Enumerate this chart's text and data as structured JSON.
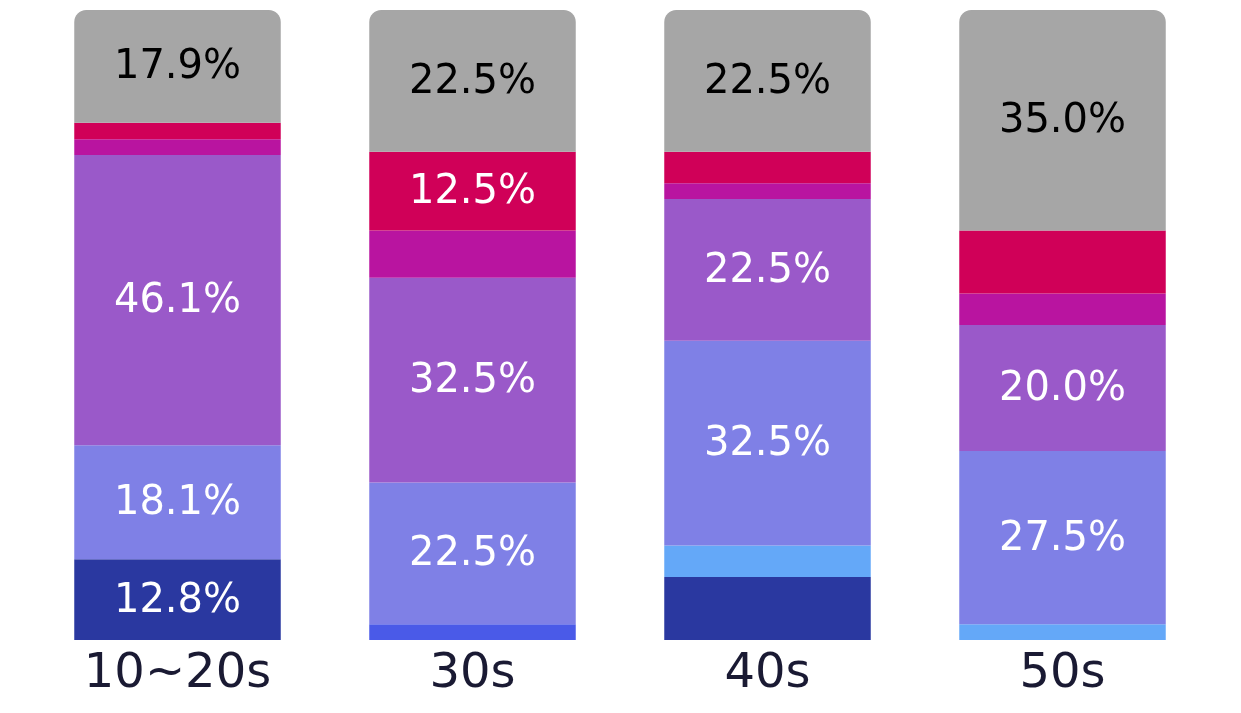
{
  "chart_data": {
    "type": "bar",
    "stacked": true,
    "categories": [
      "10~20s",
      "30s",
      "40s",
      "50s"
    ],
    "ylim": [
      0,
      100
    ],
    "tick_labels": "x",
    "series": [
      {
        "color": "#2a38a0",
        "values": [
          12.8,
          null,
          10,
          null
        ],
        "value_labels": [
          "12.8%",
          null,
          null,
          null
        ]
      },
      {
        "color": "#4a5ae8",
        "values": [
          null,
          2.5,
          null,
          null
        ],
        "value_labels": [
          null,
          null,
          null,
          null
        ]
      },
      {
        "color": "#64a8f8",
        "values": [
          null,
          null,
          5,
          2.5
        ],
        "value_labels": [
          null,
          null,
          null,
          null
        ]
      },
      {
        "color": "#7f80e6",
        "values": [
          18.1,
          22.5,
          32.5,
          27.5
        ],
        "value_labels": [
          "18.1%",
          "22.5%",
          "32.5%",
          "27.5%"
        ]
      },
      {
        "color": "#9a59c9",
        "values": [
          46.1,
          32.5,
          22.5,
          20.0
        ],
        "value_labels": [
          "46.1%",
          "32.5%",
          "22.5%",
          "20.0%"
        ]
      },
      {
        "color": "#b914a0",
        "values": [
          2.5,
          7.5,
          2.5,
          5
        ],
        "value_labels": [
          null,
          null,
          null,
          null
        ]
      },
      {
        "color": "#d00058",
        "values": [
          2.6,
          12.5,
          5,
          10
        ],
        "value_labels": [
          null,
          "12.5%",
          null,
          null
        ]
      },
      {
        "color": "#a6a6a6",
        "values": [
          17.9,
          22.5,
          22.5,
          35.0
        ],
        "value_labels": [
          "17.9%",
          "22.5%",
          "22.5%",
          "35.0%"
        ]
      }
    ]
  }
}
